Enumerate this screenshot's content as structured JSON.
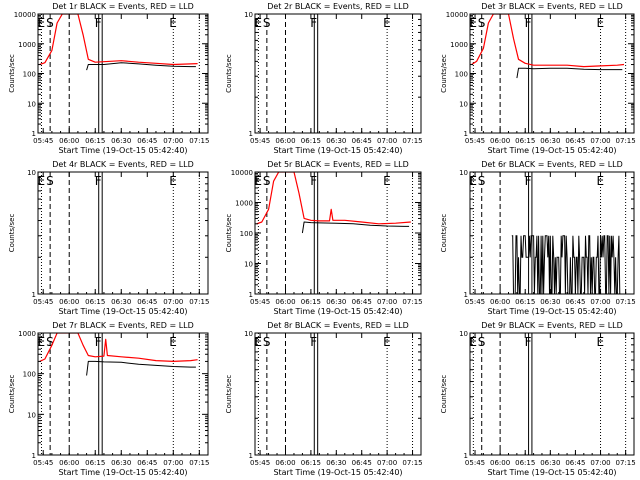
{
  "chart_data": [
    {
      "type": "line",
      "title": "Det 1r BLACK = Events, RED = LLD",
      "ylabel": "Counts/sec",
      "xlabel": "Start Time (19-Oct-15 05:42:40)",
      "yscale": "log",
      "ylim": [
        1,
        10000
      ],
      "yticks": [
        "1",
        "10",
        "100",
        "1000",
        "10000"
      ],
      "xticks": [
        "05:45",
        "06:00",
        "06:15",
        "06:30",
        "06:45",
        "07:00",
        "07:15"
      ],
      "markers": [
        {
          "label": "E",
          "t": "05:44",
          "style": "dotted"
        },
        {
          "label": "S",
          "t": "05:49",
          "style": "dashed"
        },
        {
          "label": "",
          "t": "06:00",
          "style": "dashed"
        },
        {
          "label": "F",
          "t": "06:17",
          "style": "solid"
        },
        {
          "label": "",
          "t": "06:19",
          "style": "solid"
        },
        {
          "label": "E",
          "t": "07:00",
          "style": "dotted"
        },
        {
          "label": "",
          "t": "07:15",
          "style": "dotted"
        }
      ],
      "series": [
        {
          "color": "#ff0000",
          "points": [
            [
              "05:43",
              200
            ],
            [
              "05:46",
              230
            ],
            [
              "05:50",
              600
            ],
            [
              "05:53",
              5000
            ],
            [
              "05:56",
              10000
            ],
            [
              "06:05",
              10000
            ],
            [
              "06:08",
              2000
            ],
            [
              "06:11",
              300
            ],
            [
              "06:15",
              240
            ],
            [
              "06:20",
              250
            ],
            [
              "06:30",
              270
            ],
            [
              "06:40",
              240
            ],
            [
              "06:50",
              220
            ],
            [
              "07:00",
              200
            ],
            [
              "07:10",
              210
            ],
            [
              "07:14",
              215
            ]
          ]
        },
        {
          "color": "#000000",
          "points": [
            [
              "06:10",
              130
            ],
            [
              "06:11",
              200
            ],
            [
              "06:15",
              200
            ],
            [
              "06:20",
              200
            ],
            [
              "06:30",
              230
            ],
            [
              "06:40",
              210
            ],
            [
              "06:50",
              190
            ],
            [
              "07:00",
              175
            ],
            [
              "07:10",
              170
            ],
            [
              "07:13",
              170
            ]
          ]
        }
      ]
    },
    {
      "type": "line",
      "title": "Det 2r BLACK = Events, RED = LLD",
      "ylabel": "Counts/sec",
      "xlabel": "Start Time (19-Oct-15 05:42:40)",
      "yscale": "log",
      "ylim": [
        1,
        10
      ],
      "yticks": [
        "1",
        "10"
      ],
      "xticks": [
        "05:45",
        "06:00",
        "06:15",
        "06:30",
        "06:45",
        "07:00",
        "07:15"
      ],
      "markers": [
        {
          "label": "E",
          "t": "05:44",
          "style": "dotted"
        },
        {
          "label": "S",
          "t": "05:49",
          "style": "dashed"
        },
        {
          "label": "",
          "t": "06:00",
          "style": "dashed"
        },
        {
          "label": "F",
          "t": "06:17",
          "style": "solid"
        },
        {
          "label": "",
          "t": "06:19",
          "style": "solid"
        },
        {
          "label": "E",
          "t": "07:00",
          "style": "dotted"
        },
        {
          "label": "",
          "t": "07:15",
          "style": "dotted"
        }
      ],
      "series": []
    },
    {
      "type": "line",
      "title": "Det 3r BLACK = Events, RED = LLD",
      "ylabel": "Counts/sec",
      "xlabel": "Start Time (19-Oct-15 05:42:40)",
      "yscale": "log",
      "ylim": [
        1,
        10000
      ],
      "yticks": [
        "1",
        "10",
        "100",
        "1000",
        "10000"
      ],
      "xticks": [
        "05:45",
        "06:00",
        "06:15",
        "06:30",
        "06:45",
        "07:00",
        "07:15"
      ],
      "markers": [
        {
          "label": "E",
          "t": "05:44",
          "style": "dotted"
        },
        {
          "label": "S",
          "t": "05:49",
          "style": "dashed"
        },
        {
          "label": "",
          "t": "06:00",
          "style": "dashed"
        },
        {
          "label": "F",
          "t": "06:17",
          "style": "solid"
        },
        {
          "label": "",
          "t": "06:19",
          "style": "solid"
        },
        {
          "label": "E",
          "t": "07:00",
          "style": "dotted"
        },
        {
          "label": "",
          "t": "07:15",
          "style": "dotted"
        }
      ],
      "series": [
        {
          "color": "#ff0000",
          "points": [
            [
              "05:43",
              200
            ],
            [
              "05:46",
              260
            ],
            [
              "05:50",
              700
            ],
            [
              "05:53",
              5000
            ],
            [
              "05:56",
              10000
            ],
            [
              "06:05",
              10000
            ],
            [
              "06:08",
              1500
            ],
            [
              "06:11",
              300
            ],
            [
              "06:15",
              220
            ],
            [
              "06:20",
              190
            ],
            [
              "06:30",
              190
            ],
            [
              "06:40",
              190
            ],
            [
              "06:50",
              170
            ],
            [
              "07:00",
              180
            ],
            [
              "07:10",
              190
            ],
            [
              "07:14",
              200
            ]
          ]
        },
        {
          "color": "#000000",
          "points": [
            [
              "06:10",
              70
            ],
            [
              "06:11",
              150
            ],
            [
              "06:15",
              150
            ],
            [
              "06:20",
              145
            ],
            [
              "06:30",
              150
            ],
            [
              "06:40",
              150
            ],
            [
              "06:50",
              140
            ],
            [
              "07:00",
              135
            ],
            [
              "07:10",
              135
            ],
            [
              "07:13",
              135
            ]
          ]
        }
      ]
    },
    {
      "type": "line",
      "title": "Det 4r BLACK = Events, RED = LLD",
      "ylabel": "Counts/sec",
      "xlabel": "Start Time (19-Oct-15 05:42:40)",
      "yscale": "log",
      "ylim": [
        1,
        10
      ],
      "yticks": [
        "1",
        "10"
      ],
      "xticks": [
        "05:45",
        "06:00",
        "06:15",
        "06:30",
        "06:45",
        "07:00",
        "07:15"
      ],
      "markers": [
        {
          "label": "E",
          "t": "05:44",
          "style": "dotted"
        },
        {
          "label": "S",
          "t": "05:49",
          "style": "dashed"
        },
        {
          "label": "",
          "t": "06:00",
          "style": "dashed"
        },
        {
          "label": "F",
          "t": "06:17",
          "style": "solid"
        },
        {
          "label": "",
          "t": "06:19",
          "style": "solid"
        },
        {
          "label": "E",
          "t": "07:00",
          "style": "dotted"
        },
        {
          "label": "",
          "t": "07:15",
          "style": "dotted"
        }
      ],
      "series": []
    },
    {
      "type": "line",
      "title": "Det 5r BLACK = Events, RED = LLD",
      "ylabel": "Counts/sec",
      "xlabel": "Start Time (19-Oct-15 05:42:40)",
      "yscale": "log",
      "ylim": [
        1,
        10000
      ],
      "yticks": [
        "1",
        "10",
        "100",
        "1000",
        "10000"
      ],
      "xticks": [
        "05:45",
        "06:00",
        "06:15",
        "06:30",
        "06:45",
        "07:00",
        "07:15"
      ],
      "markers": [
        {
          "label": "E",
          "t": "05:44",
          "style": "dotted"
        },
        {
          "label": "S",
          "t": "05:49",
          "style": "dashed"
        },
        {
          "label": "",
          "t": "06:00",
          "style": "dashed"
        },
        {
          "label": "F",
          "t": "06:17",
          "style": "solid"
        },
        {
          "label": "",
          "t": "06:19",
          "style": "solid"
        },
        {
          "label": "E",
          "t": "07:00",
          "style": "dotted"
        },
        {
          "label": "",
          "t": "07:15",
          "style": "dotted"
        }
      ],
      "series": [
        {
          "color": "#ff0000",
          "points": [
            [
              "05:43",
              200
            ],
            [
              "05:46",
              230
            ],
            [
              "05:50",
              600
            ],
            [
              "05:53",
              5000
            ],
            [
              "05:56",
              10000
            ],
            [
              "06:05",
              10000
            ],
            [
              "06:08",
              2000
            ],
            [
              "06:11",
              300
            ],
            [
              "06:15",
              260
            ],
            [
              "06:20",
              250
            ],
            [
              "06:26",
              250
            ],
            [
              "06:27",
              600
            ],
            [
              "06:28",
              260
            ],
            [
              "06:35",
              260
            ],
            [
              "06:45",
              230
            ],
            [
              "06:55",
              200
            ],
            [
              "07:05",
              210
            ],
            [
              "07:14",
              230
            ]
          ]
        },
        {
          "color": "#000000",
          "points": [
            [
              "06:10",
              100
            ],
            [
              "06:11",
              230
            ],
            [
              "06:15",
              220
            ],
            [
              "06:20",
              215
            ],
            [
              "06:30",
              210
            ],
            [
              "06:40",
              200
            ],
            [
              "06:50",
              180
            ],
            [
              "07:00",
              170
            ],
            [
              "07:10",
              165
            ],
            [
              "07:13",
              165
            ]
          ]
        }
      ]
    },
    {
      "type": "line",
      "title": "Det 6r BLACK = Events, RED = LLD",
      "ylabel": "Counts/sec",
      "xlabel": "Start Time (19-Oct-15 05:42:40)",
      "yscale": "log",
      "ylim": [
        1,
        10
      ],
      "yticks": [
        "1",
        "10"
      ],
      "xticks": [
        "05:45",
        "06:00",
        "06:15",
        "06:30",
        "06:45",
        "07:00",
        "07:15"
      ],
      "markers": [
        {
          "label": "E",
          "t": "05:44",
          "style": "dotted"
        },
        {
          "label": "S",
          "t": "05:49",
          "style": "dashed"
        },
        {
          "label": "",
          "t": "06:00",
          "style": "dashed"
        },
        {
          "label": "F",
          "t": "06:17",
          "style": "solid"
        },
        {
          "label": "",
          "t": "06:19",
          "style": "solid"
        },
        {
          "label": "E",
          "t": "07:00",
          "style": "dotted"
        },
        {
          "label": "",
          "t": "07:15",
          "style": "dotted"
        }
      ],
      "series": [
        {
          "color": "#000000",
          "noise": true,
          "tstart": "06:07",
          "tend": "07:12",
          "low": 1,
          "high": 3
        }
      ]
    },
    {
      "type": "line",
      "title": "Det 7r BLACK = Events, RED = LLD",
      "ylabel": "Counts/sec",
      "xlabel": "Start Time (19-Oct-15 05:42:40)",
      "yscale": "log",
      "ylim": [
        1,
        1000
      ],
      "yticks": [
        "1",
        "10",
        "100",
        "1000"
      ],
      "xticks": [
        "05:45",
        "06:00",
        "06:15",
        "06:30",
        "06:45",
        "07:00",
        "07:15"
      ],
      "markers": [
        {
          "label": "E",
          "t": "05:44",
          "style": "dotted"
        },
        {
          "label": "S",
          "t": "05:49",
          "style": "dashed"
        },
        {
          "label": "",
          "t": "06:00",
          "style": "dashed"
        },
        {
          "label": "F",
          "t": "06:17",
          "style": "solid"
        },
        {
          "label": "",
          "t": "06:19",
          "style": "solid"
        },
        {
          "label": "E",
          "t": "07:00",
          "style": "dotted"
        },
        {
          "label": "",
          "t": "07:15",
          "style": "dotted"
        }
      ],
      "series": [
        {
          "color": "#ff0000",
          "points": [
            [
              "05:43",
              200
            ],
            [
              "05:46",
              230
            ],
            [
              "05:50",
              500
            ],
            [
              "05:53",
              1000
            ],
            [
              "05:58",
              1000
            ],
            [
              "06:05",
              1000
            ],
            [
              "06:08",
              500
            ],
            [
              "06:11",
              280
            ],
            [
              "06:15",
              260
            ],
            [
              "06:20",
              270
            ],
            [
              "06:21",
              700
            ],
            [
              "06:22",
              280
            ],
            [
              "06:30",
              260
            ],
            [
              "06:40",
              240
            ],
            [
              "06:50",
              210
            ],
            [
              "07:00",
              200
            ],
            [
              "07:10",
              210
            ],
            [
              "07:14",
              220
            ]
          ]
        },
        {
          "color": "#000000",
          "points": [
            [
              "06:10",
              90
            ],
            [
              "06:11",
              200
            ],
            [
              "06:15",
              200
            ],
            [
              "06:20",
              195
            ],
            [
              "06:30",
              190
            ],
            [
              "06:40",
              170
            ],
            [
              "06:50",
              160
            ],
            [
              "07:00",
              150
            ],
            [
              "07:10",
              145
            ],
            [
              "07:13",
              145
            ]
          ]
        }
      ]
    },
    {
      "type": "line",
      "title": "Det 8r BLACK = Events, RED = LLD",
      "ylabel": "Counts/sec",
      "xlabel": "Start Time (19-Oct-15 05:42:40)",
      "yscale": "log",
      "ylim": [
        1,
        10
      ],
      "yticks": [
        "1",
        "10"
      ],
      "xticks": [
        "05:45",
        "06:00",
        "06:15",
        "06:30",
        "06:45",
        "07:00",
        "07:15"
      ],
      "markers": [
        {
          "label": "E",
          "t": "05:44",
          "style": "dotted"
        },
        {
          "label": "S",
          "t": "05:49",
          "style": "dashed"
        },
        {
          "label": "",
          "t": "06:00",
          "style": "dashed"
        },
        {
          "label": "F",
          "t": "06:17",
          "style": "solid"
        },
        {
          "label": "",
          "t": "06:19",
          "style": "solid"
        },
        {
          "label": "E",
          "t": "07:00",
          "style": "dotted"
        },
        {
          "label": "",
          "t": "07:15",
          "style": "dotted"
        }
      ],
      "series": []
    },
    {
      "type": "line",
      "title": "Det 9r BLACK = Events, RED = LLD",
      "ylabel": "Counts/sec",
      "xlabel": "Start Time (19-Oct-15 05:42:40)",
      "yscale": "log",
      "ylim": [
        1,
        10
      ],
      "yticks": [
        "1",
        "10"
      ],
      "xticks": [
        "05:45",
        "06:00",
        "06:15",
        "06:30",
        "06:45",
        "07:00",
        "07:15"
      ],
      "markers": [
        {
          "label": "E",
          "t": "05:44",
          "style": "dotted"
        },
        {
          "label": "S",
          "t": "05:49",
          "style": "dashed"
        },
        {
          "label": "",
          "t": "06:00",
          "style": "dashed"
        },
        {
          "label": "F",
          "t": "06:17",
          "style": "solid"
        },
        {
          "label": "",
          "t": "06:19",
          "style": "solid"
        },
        {
          "label": "E",
          "t": "07:00",
          "style": "dotted"
        },
        {
          "label": "",
          "t": "07:15",
          "style": "dotted"
        }
      ],
      "series": []
    }
  ]
}
